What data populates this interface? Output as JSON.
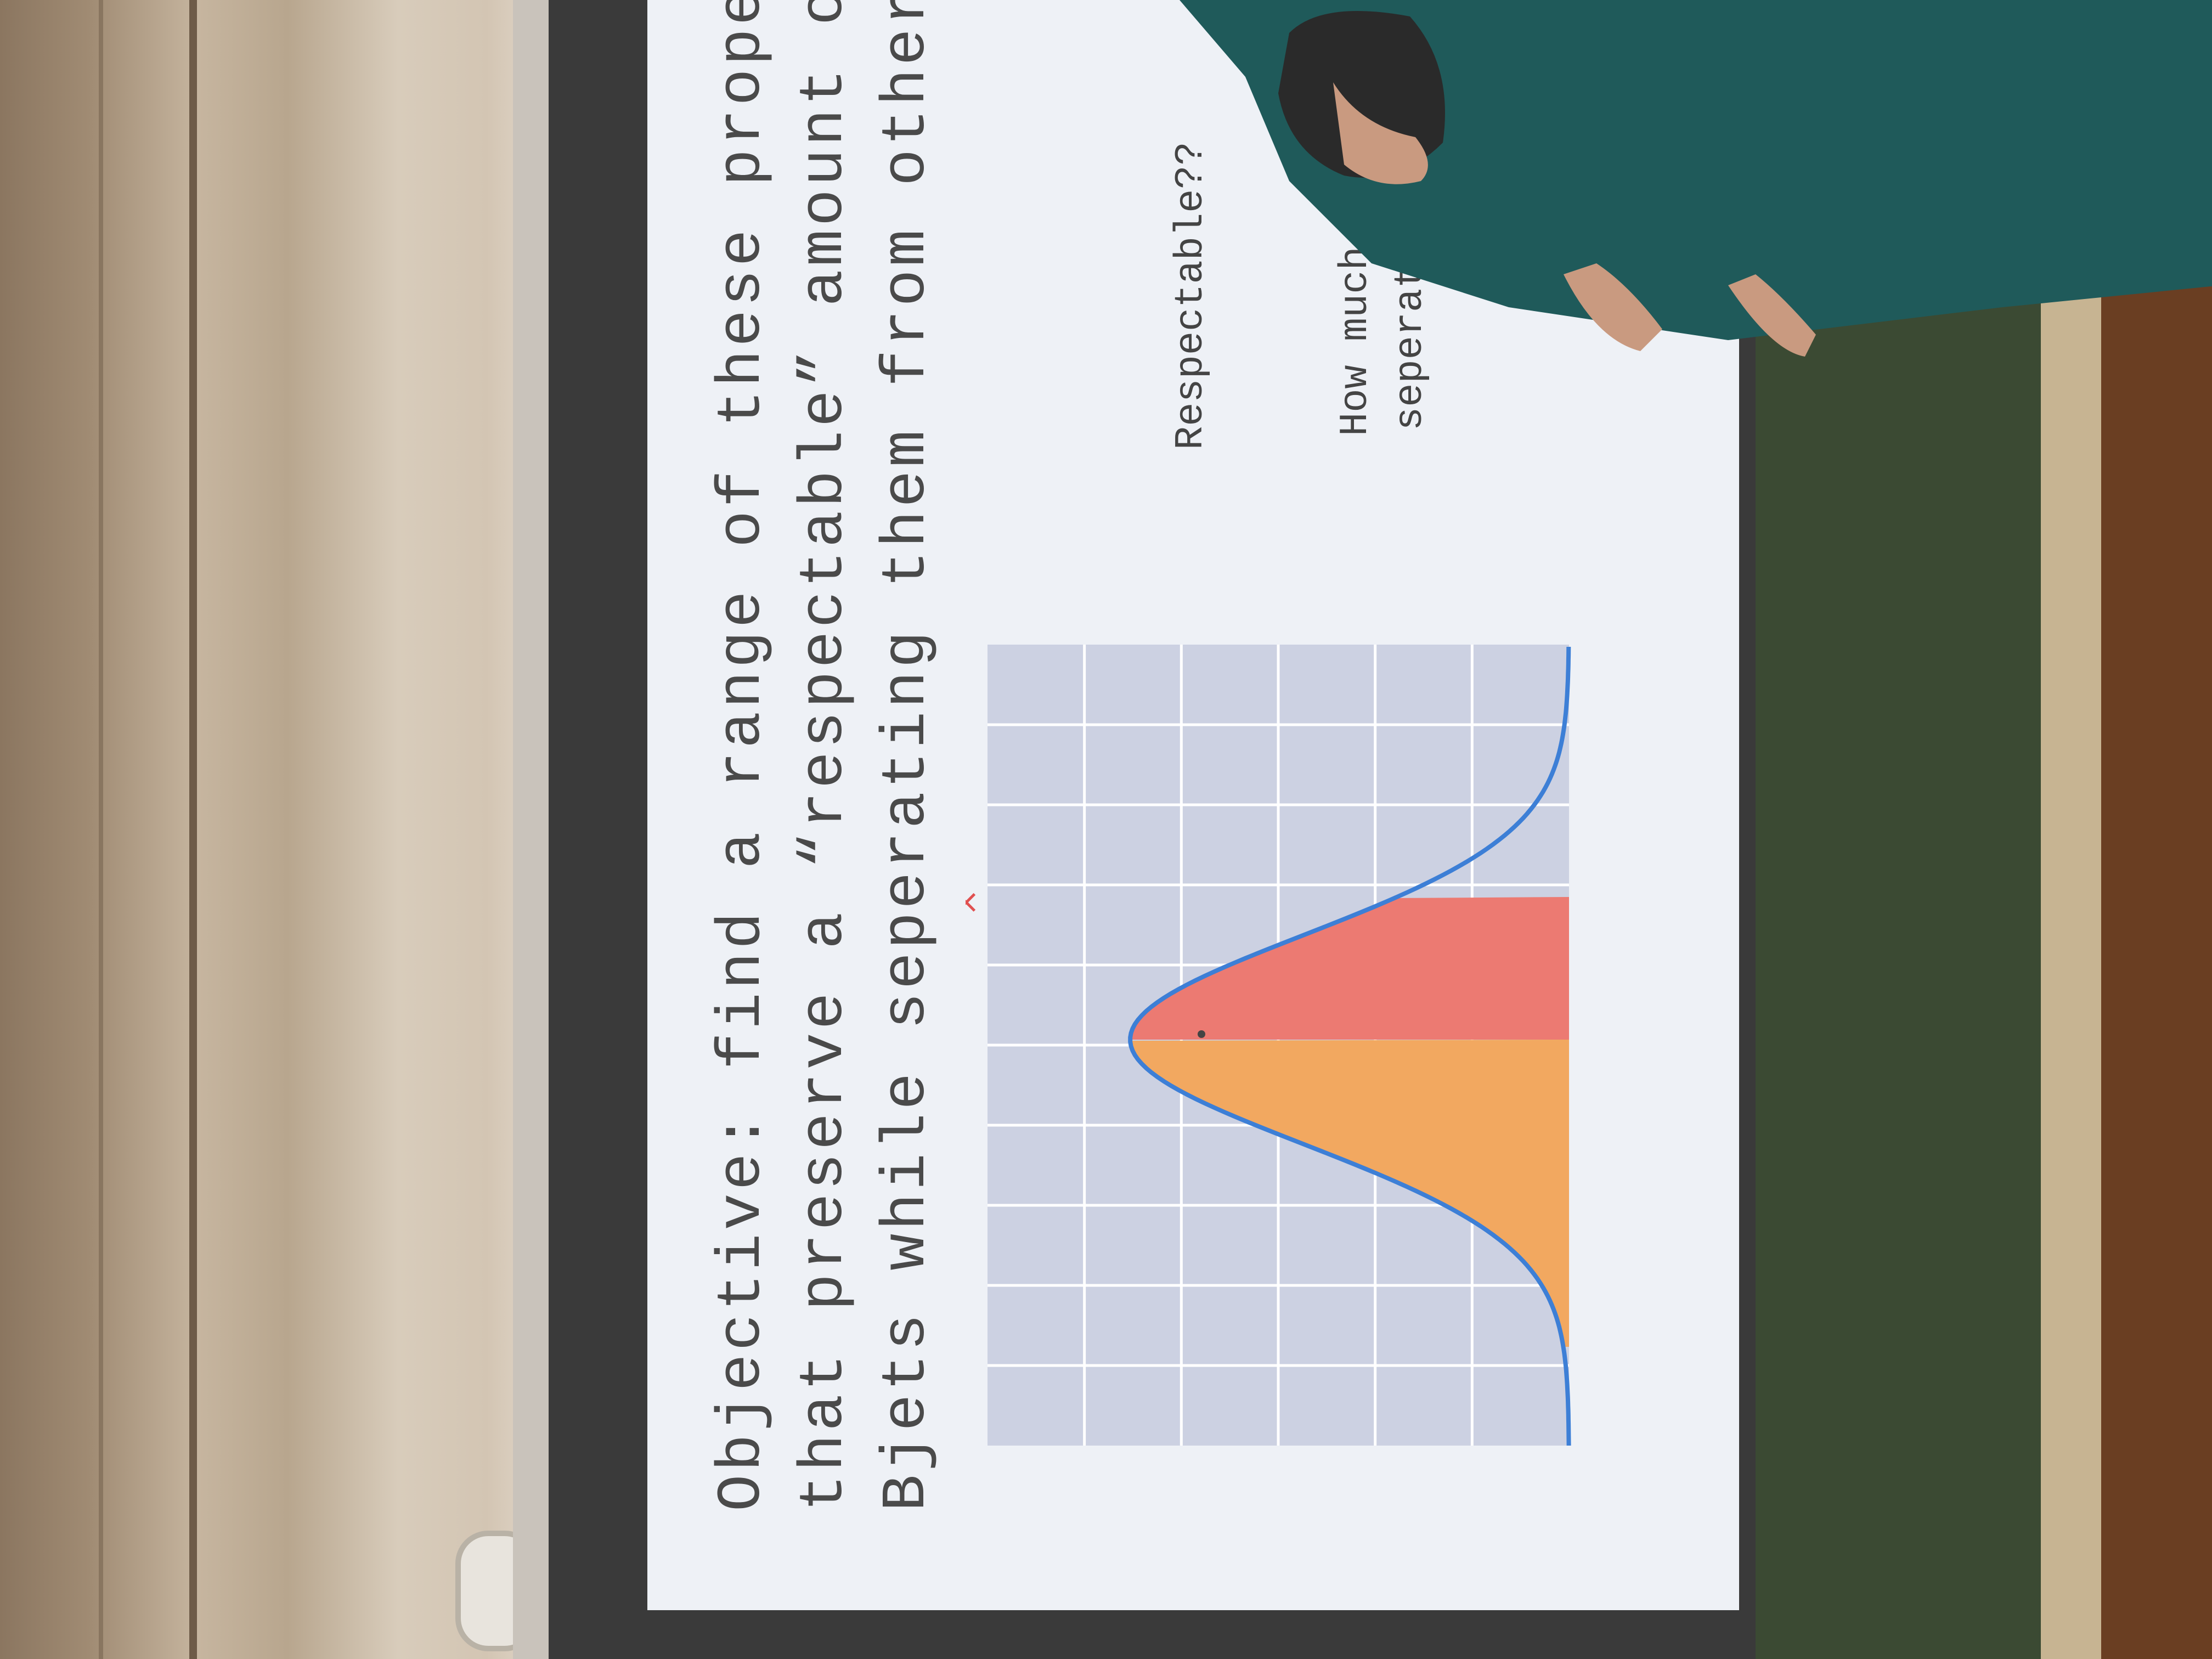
{
  "slide": {
    "line1": "Objective: find a range of these properti",
    "line2": "that preserve a “respectable” amount of",
    "line3": "Bjets while seperating them from others",
    "note1": "Respectable??",
    "note2": "How much",
    "note3": "seperation"
  },
  "chart_data": {
    "type": "area",
    "curve": "gaussian",
    "gridlines": true,
    "fill_regions": [
      {
        "color": "#f2a860"
      },
      {
        "color": "#ec7a72"
      }
    ],
    "marker": "×",
    "line_color": "#3d7fd6"
  }
}
